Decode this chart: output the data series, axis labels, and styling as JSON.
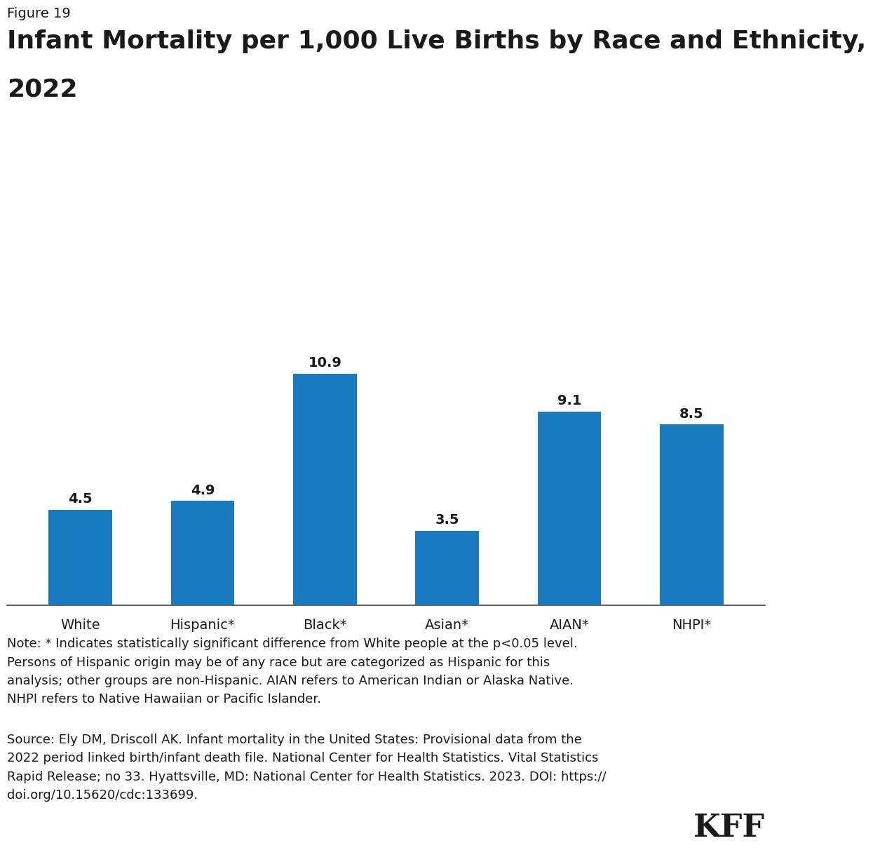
{
  "figure_label": "Figure 19",
  "title_line1": "Infant Mortality per 1,000 Live Births by Race and Ethnicity,",
  "title_line2": "2022",
  "categories": [
    "White",
    "Hispanic*",
    "Black*",
    "Asian*",
    "AIAN*",
    "NHPI*"
  ],
  "values": [
    4.5,
    4.9,
    10.9,
    3.5,
    9.1,
    8.5
  ],
  "bar_color": "#1a7abf",
  "background_color": "#ffffff",
  "text_color": "#1a1a1a",
  "note_text": "Note: * Indicates statistically significant difference from White people at the p<0.05 level.\nPersons of Hispanic origin may be of any race but are categorized as Hispanic for this\nanalysis; other groups are non-Hispanic. AIAN refers to American Indian or Alaska Native.\nNHPI refers to Native Hawaiian or Pacific Islander.",
  "source_text": "Source: Ely DM, Driscoll AK. Infant mortality in the United States: Provisional data from the\n2022 period linked birth/infant death file. National Center for Health Statistics. Vital Statistics\nRapid Release; no 33. Hyattsville, MD: National Center for Health Statistics. 2023. DOI: https://\ndoi.org/10.15620/cdc:133699.",
  "ylim": [
    0,
    12.5
  ],
  "value_label_fontsize": 14,
  "category_fontsize": 14,
  "note_fontsize": 13,
  "source_fontsize": 13,
  "title_fontsize": 26,
  "figure_label_fontsize": 14,
  "kff_fontsize": 32
}
